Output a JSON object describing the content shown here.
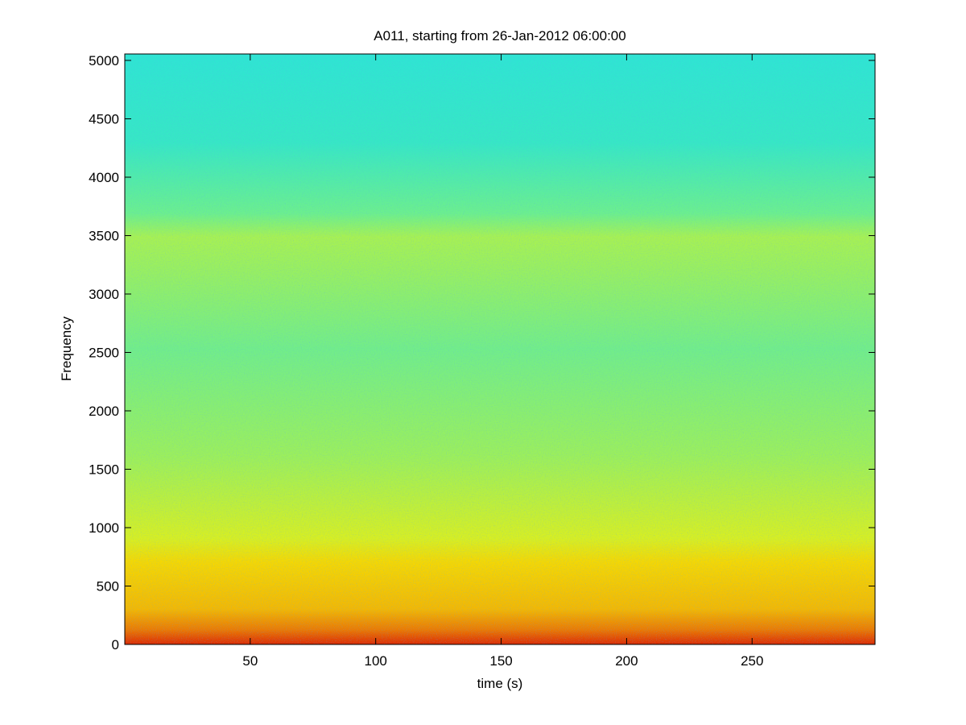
{
  "chart_data": {
    "type": "spectrogram",
    "title": "A011, starting from 26-Jan-2012 06:00:00",
    "x_label": "time (s)",
    "y_label": "Frequency",
    "xlim": [
      0,
      299
    ],
    "ylim": [
      0,
      5055
    ],
    "xticks": [
      50,
      100,
      150,
      200,
      250
    ],
    "yticks": [
      0,
      500,
      1000,
      1500,
      2000,
      2500,
      3000,
      3500,
      4000,
      4500,
      5000
    ]
  }
}
